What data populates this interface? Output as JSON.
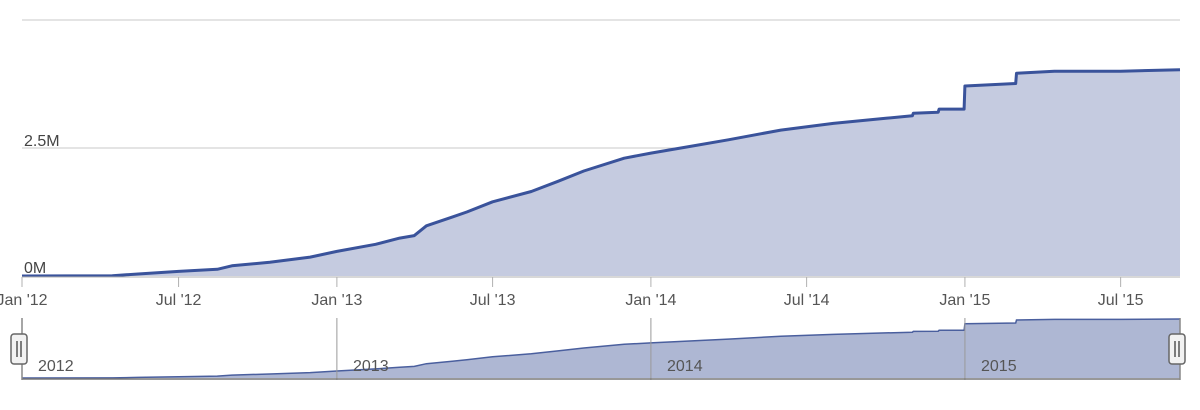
{
  "chart_data": {
    "type": "area",
    "title": "",
    "xlabel": "",
    "ylabel": "",
    "x_ticks": [
      "Jan '12",
      "Jul '12",
      "Jan '13",
      "Jul '13",
      "Jan '14",
      "Jul '14",
      "Jan '15",
      "Jul '15"
    ],
    "y_ticks": [
      "0M",
      "2.5M"
    ],
    "ylim": [
      0,
      5000000
    ],
    "xlim": [
      "2012-01-01",
      "2015-09-08"
    ],
    "grid": true,
    "series": [
      {
        "color": "#3a539b",
        "fill": "#c5cbe0",
        "points": [
          [
            "2012-01-01",
            0
          ],
          [
            "2012-04-15",
            5000
          ],
          [
            "2012-05-15",
            40000
          ],
          [
            "2012-07-01",
            90000
          ],
          [
            "2012-08-15",
            130000
          ],
          [
            "2012-09-01",
            200000
          ],
          [
            "2012-10-15",
            270000
          ],
          [
            "2012-12-01",
            370000
          ],
          [
            "2013-01-01",
            480000
          ],
          [
            "2013-02-15",
            620000
          ],
          [
            "2013-03-15",
            740000
          ],
          [
            "2013-04-01",
            790000
          ],
          [
            "2013-04-15",
            980000
          ],
          [
            "2013-05-15",
            1150000
          ],
          [
            "2013-06-01",
            1250000
          ],
          [
            "2013-07-01",
            1450000
          ],
          [
            "2013-08-15",
            1650000
          ],
          [
            "2013-09-15",
            1850000
          ],
          [
            "2013-10-15",
            2050000
          ],
          [
            "2013-12-01",
            2300000
          ],
          [
            "2014-01-01",
            2400000
          ],
          [
            "2014-02-15",
            2530000
          ],
          [
            "2014-04-01",
            2660000
          ],
          [
            "2014-06-01",
            2850000
          ],
          [
            "2014-08-01",
            2980000
          ],
          [
            "2014-10-01",
            3080000
          ],
          [
            "2014-11-01",
            3130000
          ],
          [
            "2014-11-02",
            3180000
          ],
          [
            "2014-12-01",
            3200000
          ],
          [
            "2014-12-02",
            3260000
          ],
          [
            "2014-12-31",
            3260000
          ],
          [
            "2015-01-01",
            3710000
          ],
          [
            "2015-03-01",
            3760000
          ],
          [
            "2015-03-02",
            3960000
          ],
          [
            "2015-04-15",
            4000000
          ],
          [
            "2015-07-01",
            4000000
          ],
          [
            "2015-09-08",
            4030000
          ]
        ]
      }
    ],
    "navigator": {
      "year_labels": [
        "2012",
        "2013",
        "2014",
        "2015"
      ]
    }
  }
}
